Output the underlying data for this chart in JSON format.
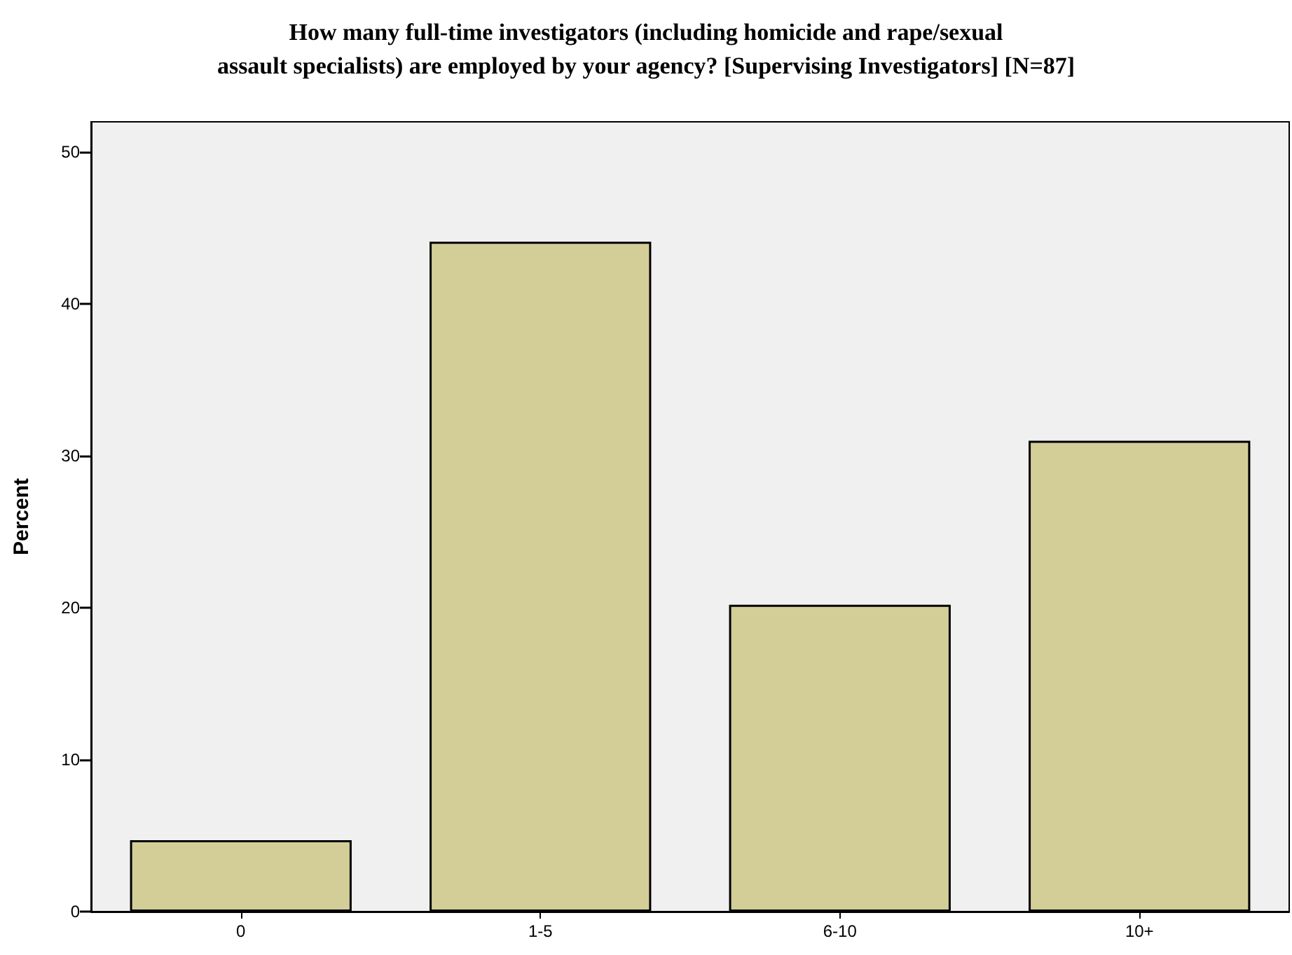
{
  "chart_data": {
    "type": "bar",
    "title": "How many full-time investigators (including homicide and rape/sexual\nassault specialists) are employed by your agency? [Supervising Investigators] [N=87]",
    "ylabel": "Percent",
    "categories": [
      "0",
      "1-5",
      "6-10",
      "10+"
    ],
    "values": [
      4.7,
      44.1,
      20.2,
      31.0
    ],
    "color": "#d3ce97",
    "ylim": [
      0,
      52
    ],
    "yticks": [
      0,
      10,
      20,
      30,
      40,
      50
    ],
    "grid": false
  }
}
